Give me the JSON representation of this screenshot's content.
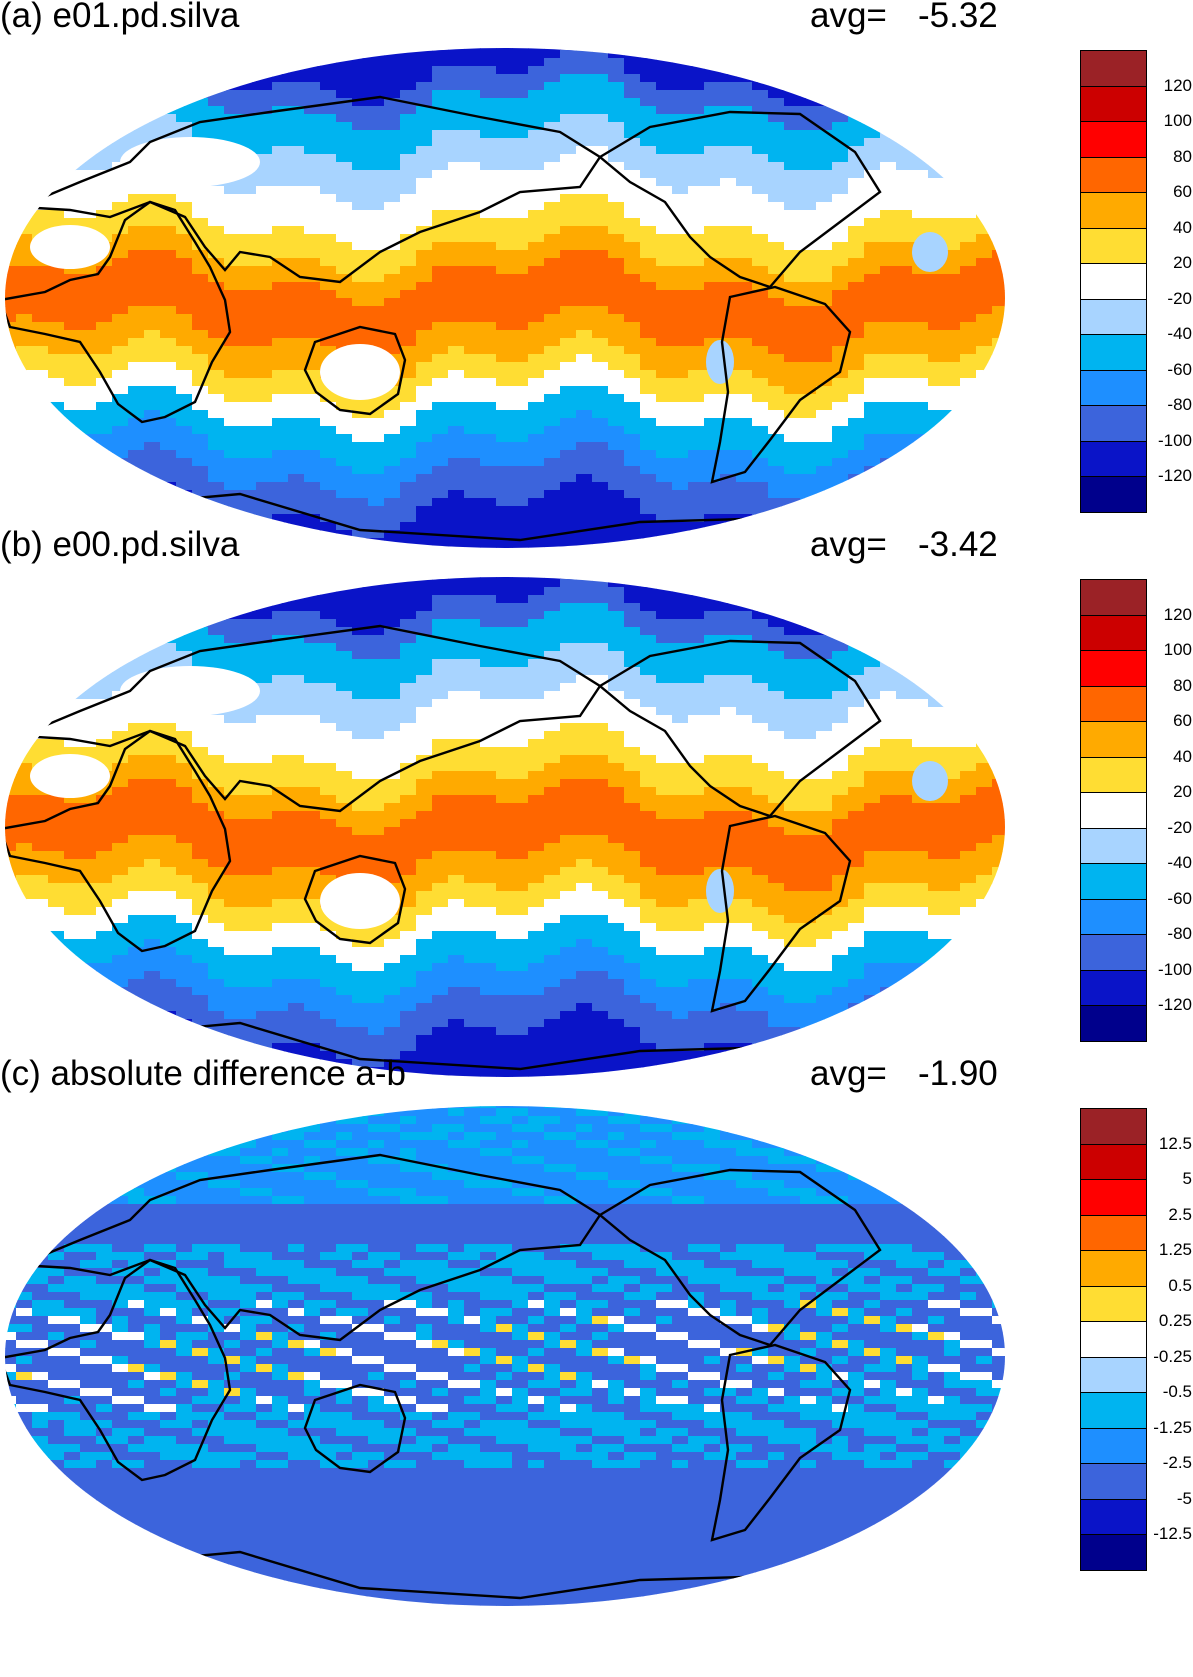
{
  "panels": [
    {
      "id": "a",
      "title": "(a) e01.pd.silva",
      "avg_label": "avg=",
      "avg_value": "-5.32",
      "pattern": "field"
    },
    {
      "id": "b",
      "title": "(b) e00.pd.silva",
      "avg_label": "avg=",
      "avg_value": "-3.42",
      "pattern": "field"
    },
    {
      "id": "c",
      "title": "(c) absolute difference a-b",
      "avg_label": "avg=",
      "avg_value": "-1.90",
      "pattern": "difference"
    }
  ],
  "colorbars": {
    "field": {
      "ticks": [
        "120",
        "100",
        "80",
        "60",
        "40",
        "20",
        "-20",
        "-40",
        "-60",
        "-80",
        "-100",
        "-120"
      ]
    },
    "difference": {
      "ticks": [
        "12.5",
        "5",
        "2.5",
        "1.25",
        "0.5",
        "0.25",
        "-0.25",
        "-0.5",
        "-1.25",
        "-2.5",
        "-5",
        "-12.5"
      ]
    }
  },
  "palette": [
    "#9b2226",
    "#cc0000",
    "#ff0000",
    "#ff6600",
    "#ffaa00",
    "#ffdd33",
    "#ffffff",
    "#a8d4ff",
    "#00b4f0",
    "#1e8fff",
    "#3c64dc",
    "#0a14c8",
    "#00008c"
  ]
}
